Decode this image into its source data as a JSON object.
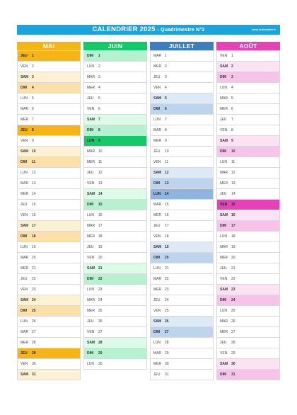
{
  "header": {
    "title": "CALENDRIER 2025",
    "subtitle": "- Quadrimestre N°2",
    "url": "www.icalendrier.fr",
    "color": "#1aa3dc"
  },
  "months": [
    {
      "name": "MAI",
      "colors": {
        "header": "#f7b416",
        "sat": "#fdf1d4",
        "sun": "#fbe1a9",
        "holiday": "#f7b416"
      },
      "days": [
        {
          "d": "JEU",
          "n": "1",
          "t": "h"
        },
        {
          "d": "VEN",
          "n": "2",
          "t": ""
        },
        {
          "d": "SAM",
          "n": "3",
          "t": "sat"
        },
        {
          "d": "DIM",
          "n": "4",
          "t": "sun"
        },
        {
          "d": "LUN",
          "n": "5",
          "t": ""
        },
        {
          "d": "MAR",
          "n": "6",
          "t": ""
        },
        {
          "d": "MER",
          "n": "7",
          "t": ""
        },
        {
          "d": "JEU",
          "n": "8",
          "t": "h"
        },
        {
          "d": "VEN",
          "n": "9",
          "t": ""
        },
        {
          "d": "SAM",
          "n": "10",
          "t": "sat"
        },
        {
          "d": "DIM",
          "n": "11",
          "t": "sun"
        },
        {
          "d": "LUN",
          "n": "12",
          "t": ""
        },
        {
          "d": "MAR",
          "n": "13",
          "t": ""
        },
        {
          "d": "MER",
          "n": "14",
          "t": ""
        },
        {
          "d": "JEU",
          "n": "15",
          "t": ""
        },
        {
          "d": "VEN",
          "n": "16",
          "t": ""
        },
        {
          "d": "SAM",
          "n": "17",
          "t": "sat"
        },
        {
          "d": "DIM",
          "n": "18",
          "t": "sun"
        },
        {
          "d": "LUN",
          "n": "19",
          "t": ""
        },
        {
          "d": "MAR",
          "n": "20",
          "t": ""
        },
        {
          "d": "MER",
          "n": "21",
          "t": ""
        },
        {
          "d": "JEU",
          "n": "22",
          "t": ""
        },
        {
          "d": "VEN",
          "n": "23",
          "t": ""
        },
        {
          "d": "SAM",
          "n": "24",
          "t": "sat"
        },
        {
          "d": "DIM",
          "n": "25",
          "t": "sun"
        },
        {
          "d": "LUN",
          "n": "26",
          "t": ""
        },
        {
          "d": "MAR",
          "n": "27",
          "t": ""
        },
        {
          "d": "MER",
          "n": "28",
          "t": ""
        },
        {
          "d": "JEU",
          "n": "29",
          "t": "h"
        },
        {
          "d": "VEN",
          "n": "30",
          "t": ""
        },
        {
          "d": "SAM",
          "n": "31",
          "t": "sat"
        }
      ]
    },
    {
      "name": "JUIN",
      "colors": {
        "header": "#15c96a",
        "sat": "#dcfbe8",
        "sun": "#b6f2cf",
        "holiday": "#15c96a"
      },
      "days": [
        {
          "d": "DIM",
          "n": "1",
          "t": "sun"
        },
        {
          "d": "LUN",
          "n": "2",
          "t": ""
        },
        {
          "d": "MAR",
          "n": "3",
          "t": ""
        },
        {
          "d": "MER",
          "n": "4",
          "t": ""
        },
        {
          "d": "JEU",
          "n": "5",
          "t": ""
        },
        {
          "d": "VEN",
          "n": "6",
          "t": ""
        },
        {
          "d": "SAM",
          "n": "7",
          "t": "sat"
        },
        {
          "d": "DIM",
          "n": "8",
          "t": "sun"
        },
        {
          "d": "LUN",
          "n": "9",
          "t": "h"
        },
        {
          "d": "MAR",
          "n": "10",
          "t": ""
        },
        {
          "d": "MER",
          "n": "11",
          "t": ""
        },
        {
          "d": "JEU",
          "n": "12",
          "t": ""
        },
        {
          "d": "VEN",
          "n": "13",
          "t": ""
        },
        {
          "d": "SAM",
          "n": "14",
          "t": "sat"
        },
        {
          "d": "DIM",
          "n": "15",
          "t": "sun"
        },
        {
          "d": "LUN",
          "n": "16",
          "t": ""
        },
        {
          "d": "MAR",
          "n": "17",
          "t": ""
        },
        {
          "d": "MER",
          "n": "18",
          "t": ""
        },
        {
          "d": "JEU",
          "n": "19",
          "t": ""
        },
        {
          "d": "VEN",
          "n": "20",
          "t": ""
        },
        {
          "d": "SAM",
          "n": "21",
          "t": "sat"
        },
        {
          "d": "DIM",
          "n": "22",
          "t": "sun"
        },
        {
          "d": "LUN",
          "n": "23",
          "t": ""
        },
        {
          "d": "MAR",
          "n": "24",
          "t": ""
        },
        {
          "d": "MER",
          "n": "25",
          "t": ""
        },
        {
          "d": "JEU",
          "n": "26",
          "t": ""
        },
        {
          "d": "VEN",
          "n": "27",
          "t": ""
        },
        {
          "d": "SAM",
          "n": "28",
          "t": "sat"
        },
        {
          "d": "DIM",
          "n": "29",
          "t": "sun"
        },
        {
          "d": "LUN",
          "n": "30",
          "t": ""
        }
      ]
    },
    {
      "name": "JUILLET",
      "colors": {
        "header": "#3a7fc1",
        "sat": "#dde9f5",
        "sun": "#bcd4ec",
        "holiday": "#8db5df"
      },
      "days": [
        {
          "d": "MAR",
          "n": "1",
          "t": ""
        },
        {
          "d": "MER",
          "n": "2",
          "t": ""
        },
        {
          "d": "JEU",
          "n": "3",
          "t": ""
        },
        {
          "d": "VEN",
          "n": "4",
          "t": ""
        },
        {
          "d": "SAM",
          "n": "5",
          "t": "sat"
        },
        {
          "d": "DIM",
          "n": "6",
          "t": "sun"
        },
        {
          "d": "LUN",
          "n": "7",
          "t": ""
        },
        {
          "d": "MAR",
          "n": "8",
          "t": ""
        },
        {
          "d": "MER",
          "n": "9",
          "t": ""
        },
        {
          "d": "JEU",
          "n": "10",
          "t": ""
        },
        {
          "d": "VEN",
          "n": "11",
          "t": ""
        },
        {
          "d": "SAM",
          "n": "12",
          "t": "sat"
        },
        {
          "d": "DIM",
          "n": "13",
          "t": "sun"
        },
        {
          "d": "LUN",
          "n": "14",
          "t": "h"
        },
        {
          "d": "MAR",
          "n": "15",
          "t": ""
        },
        {
          "d": "MER",
          "n": "16",
          "t": ""
        },
        {
          "d": "JEU",
          "n": "17",
          "t": ""
        },
        {
          "d": "VEN",
          "n": "18",
          "t": ""
        },
        {
          "d": "SAM",
          "n": "19",
          "t": "sat"
        },
        {
          "d": "DIM",
          "n": "20",
          "t": "sun"
        },
        {
          "d": "LUN",
          "n": "21",
          "t": ""
        },
        {
          "d": "MAR",
          "n": "22",
          "t": ""
        },
        {
          "d": "MER",
          "n": "23",
          "t": ""
        },
        {
          "d": "JEU",
          "n": "24",
          "t": ""
        },
        {
          "d": "VEN",
          "n": "25",
          "t": ""
        },
        {
          "d": "SAM",
          "n": "26",
          "t": "sat"
        },
        {
          "d": "DIM",
          "n": "27",
          "t": "sun"
        },
        {
          "d": "LUN",
          "n": "28",
          "t": ""
        },
        {
          "d": "MAR",
          "n": "29",
          "t": ""
        },
        {
          "d": "MER",
          "n": "30",
          "t": ""
        },
        {
          "d": "JEU",
          "n": "31",
          "t": ""
        }
      ]
    },
    {
      "name": "AOÛT",
      "colors": {
        "header": "#e541b8",
        "sat": "#fbe3f4",
        "sun": "#f6c4e8",
        "holiday": "#e541b8"
      },
      "days": [
        {
          "d": "VEN",
          "n": "1",
          "t": ""
        },
        {
          "d": "SAM",
          "n": "2",
          "t": "sat"
        },
        {
          "d": "DIM",
          "n": "3",
          "t": "sun"
        },
        {
          "d": "LUN",
          "n": "4",
          "t": ""
        },
        {
          "d": "MAR",
          "n": "5",
          "t": ""
        },
        {
          "d": "MER",
          "n": "6",
          "t": ""
        },
        {
          "d": "JEU",
          "n": "7",
          "t": ""
        },
        {
          "d": "VEN",
          "n": "8",
          "t": ""
        },
        {
          "d": "SAM",
          "n": "9",
          "t": "sat"
        },
        {
          "d": "DIM",
          "n": "10",
          "t": "sun"
        },
        {
          "d": "LUN",
          "n": "11",
          "t": ""
        },
        {
          "d": "MAR",
          "n": "12",
          "t": ""
        },
        {
          "d": "MER",
          "n": "13",
          "t": ""
        },
        {
          "d": "JEU",
          "n": "14",
          "t": ""
        },
        {
          "d": "VEN",
          "n": "15",
          "t": "h"
        },
        {
          "d": "SAM",
          "n": "16",
          "t": "sat"
        },
        {
          "d": "DIM",
          "n": "17",
          "t": "sun"
        },
        {
          "d": "LUN",
          "n": "18",
          "t": ""
        },
        {
          "d": "MAR",
          "n": "19",
          "t": ""
        },
        {
          "d": "MER",
          "n": "20",
          "t": ""
        },
        {
          "d": "JEU",
          "n": "21",
          "t": ""
        },
        {
          "d": "VEN",
          "n": "22",
          "t": ""
        },
        {
          "d": "SAM",
          "n": "23",
          "t": "sat"
        },
        {
          "d": "DIM",
          "n": "24",
          "t": "sun"
        },
        {
          "d": "LUN",
          "n": "25",
          "t": ""
        },
        {
          "d": "MAR",
          "n": "26",
          "t": ""
        },
        {
          "d": "MER",
          "n": "27",
          "t": ""
        },
        {
          "d": "JEU",
          "n": "28",
          "t": ""
        },
        {
          "d": "VEN",
          "n": "29",
          "t": ""
        },
        {
          "d": "SAM",
          "n": "30",
          "t": "sat"
        },
        {
          "d": "DIM",
          "n": "31",
          "t": "sun"
        }
      ]
    }
  ]
}
